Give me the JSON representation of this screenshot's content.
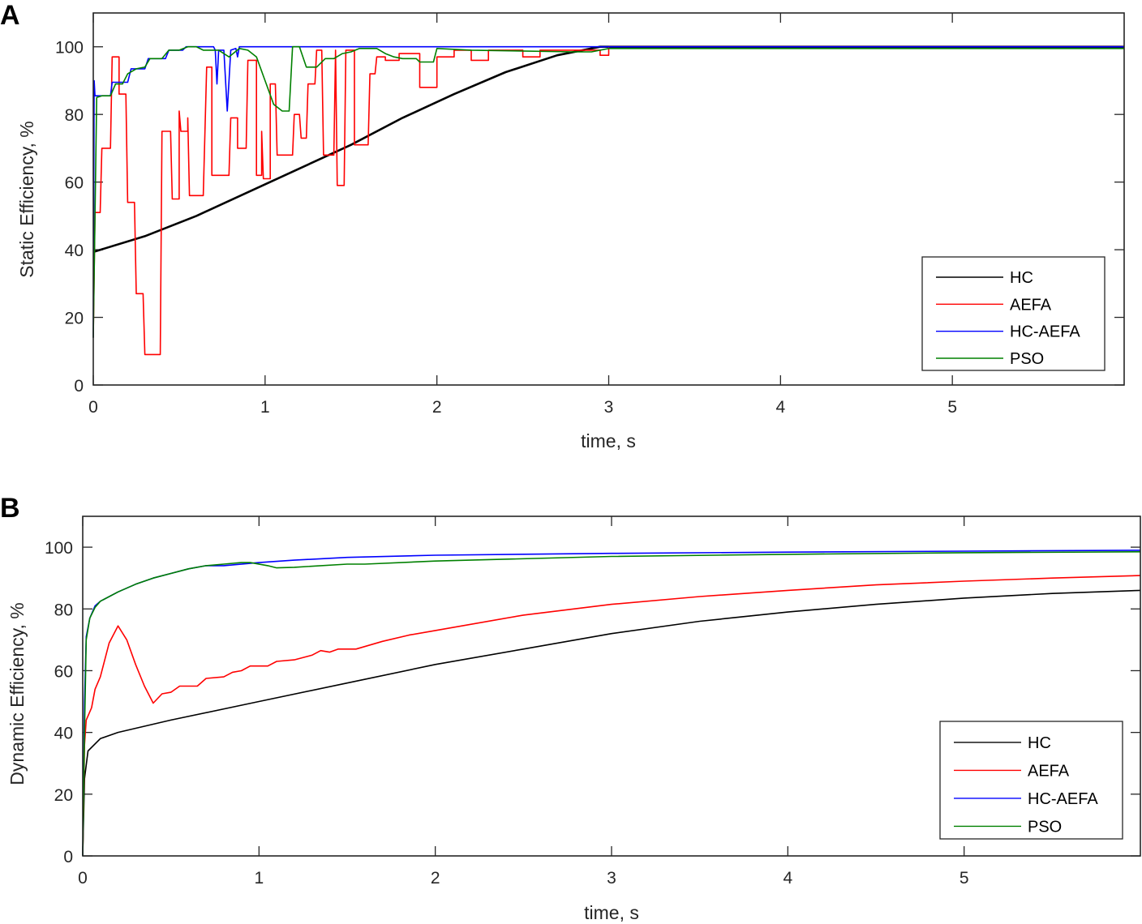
{
  "figure": {
    "panels": [
      "A",
      "B"
    ]
  },
  "chart_data": [
    {
      "panel": "A",
      "type": "line",
      "title": "",
      "xlabel": "time, s",
      "ylabel": "Static Efficiency, %",
      "xlim": [
        0,
        6
      ],
      "ylim": [
        0,
        110
      ],
      "xticks": [
        0,
        1,
        2,
        3,
        4,
        5
      ],
      "yticks": [
        0,
        20,
        40,
        60,
        80,
        100
      ],
      "grid": false,
      "legend_position": "lower right",
      "series": [
        {
          "name": "HC",
          "color": "#000000",
          "x": [
            0,
            0.01,
            0.3,
            0.6,
            0.9,
            1.2,
            1.5,
            1.8,
            2.1,
            2.4,
            2.7,
            2.95,
            3.0,
            6.0
          ],
          "y": [
            39.5,
            39.5,
            44,
            50,
            57,
            64,
            71,
            79,
            86,
            92.5,
            97.5,
            100,
            100,
            100
          ]
        },
        {
          "name": "AEFA",
          "color": "#ff0000",
          "x": [
            0,
            0.01,
            0.04,
            0.05,
            0.1,
            0.11,
            0.15,
            0.15,
            0.19,
            0.2,
            0.24,
            0.25,
            0.29,
            0.3,
            0.39,
            0.4,
            0.45,
            0.46,
            0.5,
            0.5,
            0.51,
            0.55,
            0.55,
            0.56,
            0.64,
            0.66,
            0.69,
            0.69,
            0.79,
            0.8,
            0.84,
            0.84,
            0.89,
            0.9,
            0.95,
            0.95,
            0.98,
            0.98,
            0.99,
            1.03,
            1.03,
            1.06,
            1.07,
            1.16,
            1.17,
            1.2,
            1.21,
            1.24,
            1.25,
            1.29,
            1.3,
            1.33,
            1.34,
            1.4,
            1.41,
            1.42,
            1.46,
            1.47,
            1.52,
            1.52,
            1.6,
            1.61,
            1.64,
            1.65,
            1.7,
            1.7,
            1.78,
            1.78,
            1.9,
            1.9,
            2.0,
            2.0,
            2.1,
            2.1,
            2.2,
            2.2,
            2.3,
            2.3,
            2.5,
            2.5,
            2.6,
            2.6,
            2.95,
            2.95,
            3.0,
            3.0,
            6.0
          ],
          "y": [
            14,
            51,
            51,
            70,
            70,
            97,
            97,
            86,
            86,
            54,
            54,
            27,
            27,
            9,
            9,
            75,
            75,
            55,
            55,
            81,
            75,
            75,
            79,
            56,
            56,
            94,
            94,
            62,
            62,
            79,
            79,
            70,
            70,
            96,
            96,
            62,
            62,
            75,
            61,
            61,
            89,
            89,
            68,
            68,
            80,
            80,
            73,
            73,
            89,
            89,
            99,
            99,
            68,
            68,
            99,
            59,
            59,
            99,
            99,
            71,
            71,
            92,
            92,
            97,
            97,
            96,
            96,
            98,
            98,
            88,
            88,
            97,
            97,
            99,
            99,
            96,
            96,
            99,
            99,
            97,
            97,
            99,
            99,
            97.5,
            97.5,
            100,
            100
          ]
        },
        {
          "name": "HC-AEFA",
          "color": "#0000ff",
          "x": [
            0,
            0.005,
            0.01,
            0.1,
            0.11,
            0.2,
            0.22,
            0.3,
            0.32,
            0.42,
            0.44,
            0.52,
            0.54,
            0.7,
            0.71,
            0.72,
            0.73,
            0.76,
            0.78,
            0.8,
            0.83,
            0.84,
            0.85,
            6.0
          ],
          "y": [
            14,
            90,
            85.5,
            85.5,
            89.5,
            89.5,
            93.5,
            93.5,
            96.5,
            96.5,
            99,
            99,
            100,
            100,
            99,
            89,
            99,
            99,
            81,
            99,
            99.5,
            97,
            100,
            100
          ]
        },
        {
          "name": "PSO",
          "color": "#008000",
          "x": [
            0,
            0.02,
            0.05,
            0.1,
            0.13,
            0.17,
            0.2,
            0.25,
            0.3,
            0.33,
            0.4,
            0.44,
            0.5,
            0.55,
            0.6,
            0.64,
            0.73,
            0.79,
            0.85,
            0.9,
            0.95,
            1.0,
            1.05,
            1.1,
            1.14,
            1.16,
            1.2,
            1.24,
            1.3,
            1.35,
            1.4,
            1.45,
            1.5,
            1.55,
            1.65,
            1.7,
            1.75,
            1.8,
            1.88,
            1.9,
            1.98,
            2.0,
            2.2,
            2.8,
            2.9,
            3.0,
            6.0
          ],
          "y": [
            14,
            85,
            85.5,
            85.5,
            89,
            89,
            92,
            93.5,
            94,
            96.5,
            96.5,
            99,
            99,
            100,
            100,
            99,
            99,
            97,
            99.5,
            99,
            97,
            90,
            83,
            81,
            81,
            100,
            100,
            94,
            94,
            96.5,
            96.5,
            98,
            98.5,
            99.5,
            99.5,
            98,
            97,
            96.5,
            96.5,
            95.5,
            95.5,
            99.5,
            99,
            98.5,
            98.5,
            99.5,
            99.5
          ]
        }
      ]
    },
    {
      "panel": "B",
      "type": "line",
      "title": "",
      "xlabel": "time, s",
      "ylabel": "Dynamic Efficiency, %",
      "xlim": [
        0,
        6
      ],
      "ylim": [
        0,
        110
      ],
      "xticks": [
        0,
        1,
        2,
        3,
        4,
        5
      ],
      "yticks": [
        0,
        20,
        40,
        60,
        80,
        100
      ],
      "grid": false,
      "legend_position": "lower right",
      "series": [
        {
          "name": "HC",
          "color": "#000000",
          "x": [
            0,
            0.01,
            0.03,
            0.1,
            0.2,
            0.5,
            1.0,
            1.5,
            2.0,
            2.5,
            3.0,
            3.5,
            4.0,
            4.5,
            5.0,
            5.5,
            6.0
          ],
          "y": [
            0,
            25,
            34,
            38,
            40,
            44,
            50,
            56,
            62,
            67,
            72,
            76,
            79,
            81.5,
            83.5,
            85,
            86
          ]
        },
        {
          "name": "AEFA",
          "color": "#ff0000",
          "x": [
            0,
            0.01,
            0.02,
            0.05,
            0.07,
            0.1,
            0.15,
            0.2,
            0.25,
            0.3,
            0.35,
            0.4,
            0.45,
            0.5,
            0.55,
            0.65,
            0.7,
            0.8,
            0.85,
            0.9,
            0.95,
            1.05,
            1.1,
            1.2,
            1.3,
            1.35,
            1.4,
            1.45,
            1.55,
            1.7,
            1.85,
            2.0,
            2.5,
            3.0,
            3.5,
            4.0,
            4.5,
            5.0,
            5.5,
            6.0
          ],
          "y": [
            0,
            36,
            44,
            48,
            54,
            58,
            69,
            74.5,
            70,
            62,
            55,
            49.5,
            52.5,
            53,
            55,
            55,
            57.5,
            58,
            59.5,
            60,
            61.5,
            61.5,
            63,
            63.5,
            65,
            66.5,
            66,
            67,
            67,
            69.5,
            71.5,
            73,
            78,
            81.5,
            84,
            86,
            87.8,
            89,
            90,
            90.8
          ]
        },
        {
          "name": "HC-AEFA",
          "color": "#0000ff",
          "x": [
            0,
            0.01,
            0.02,
            0.04,
            0.07,
            0.1,
            0.2,
            0.3,
            0.4,
            0.5,
            0.6,
            0.7,
            0.8,
            1.0,
            1.2,
            1.5,
            2.0,
            3.0,
            4.0,
            5.0,
            6.0
          ],
          "y": [
            0,
            50,
            71,
            77,
            81,
            82.5,
            85.5,
            88,
            90,
            91.5,
            93,
            94,
            94,
            95,
            95.8,
            96.7,
            97.4,
            98,
            98.4,
            98.7,
            99
          ]
        },
        {
          "name": "PSO",
          "color": "#008000",
          "x": [
            0,
            0.01,
            0.02,
            0.04,
            0.07,
            0.1,
            0.2,
            0.3,
            0.4,
            0.5,
            0.6,
            0.7,
            0.8,
            0.9,
            0.95,
            1.05,
            1.1,
            1.2,
            1.5,
            1.6,
            2.0,
            3.0,
            4.0,
            5.0,
            6.0
          ],
          "y": [
            0,
            40,
            70,
            77,
            80.5,
            82.5,
            85.5,
            88,
            90,
            91.5,
            93,
            94,
            94.5,
            95,
            95,
            94,
            93.3,
            93.5,
            94.5,
            94.5,
            95.5,
            97,
            97.7,
            98.2,
            98.5
          ]
        }
      ]
    }
  ]
}
